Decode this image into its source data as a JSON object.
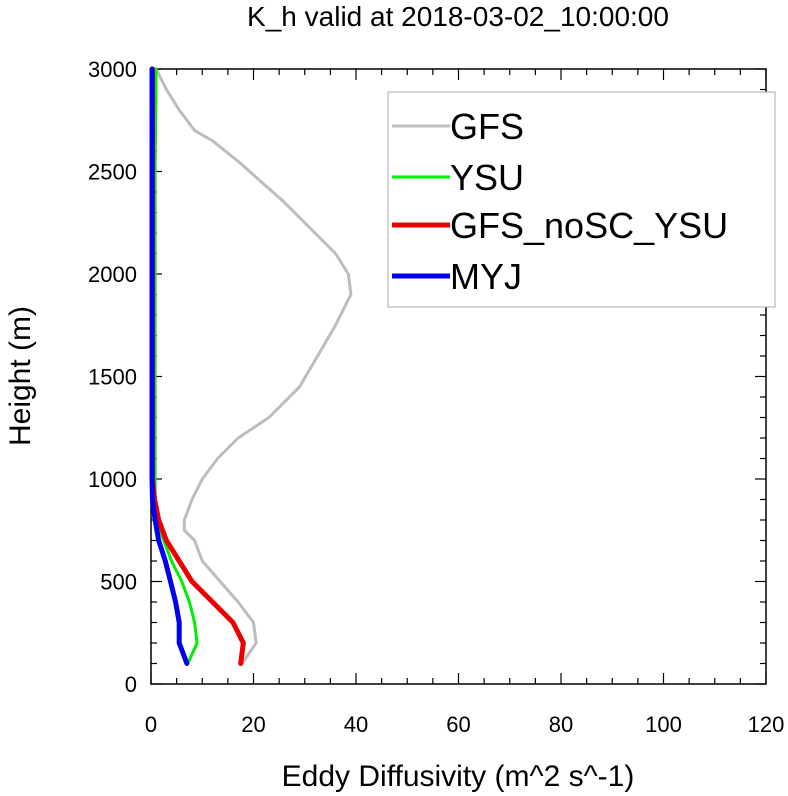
{
  "chart_data": {
    "type": "line",
    "title": "K_h valid at 2018-03-02_10:00:00",
    "xlabel": "Eddy Diffusivity (m^2 s^-1)",
    "ylabel": "Height (m)",
    "xlim": [
      0,
      120
    ],
    "ylim": [
      0,
      3000
    ],
    "xticks": [
      0,
      20,
      40,
      60,
      80,
      100,
      120
    ],
    "yticks": [
      0,
      500,
      1000,
      1500,
      2000,
      2500,
      3000
    ],
    "grid": false,
    "legend_position": "top-right",
    "series": [
      {
        "name": "GFS",
        "color": "#bdbdbd",
        "points": [
          [
            17.8,
            100
          ],
          [
            20.5,
            200
          ],
          [
            20,
            300
          ],
          [
            17,
            400
          ],
          [
            13.5,
            500
          ],
          [
            10,
            600
          ],
          [
            8.5,
            700
          ],
          [
            6.5,
            750
          ],
          [
            6.5,
            800
          ],
          [
            8,
            900
          ],
          [
            10,
            1000
          ],
          [
            13,
            1100
          ],
          [
            17,
            1200
          ],
          [
            23,
            1300
          ],
          [
            29,
            1450
          ],
          [
            32.5,
            1600
          ],
          [
            36,
            1750
          ],
          [
            39,
            1900
          ],
          [
            38.5,
            2000
          ],
          [
            36,
            2100
          ],
          [
            32,
            2200
          ],
          [
            26,
            2350
          ],
          [
            17,
            2550
          ],
          [
            12,
            2650
          ],
          [
            8.5,
            2700
          ],
          [
            5.5,
            2800
          ],
          [
            3,
            2900
          ],
          [
            1,
            3000
          ]
        ]
      },
      {
        "name": "YSU",
        "color": "#00ee00",
        "points": [
          [
            7.2,
            100
          ],
          [
            9,
            200
          ],
          [
            8.5,
            300
          ],
          [
            7.5,
            400
          ],
          [
            6,
            500
          ],
          [
            4,
            600
          ],
          [
            2.5,
            700
          ],
          [
            1.2,
            800
          ],
          [
            0.8,
            900
          ],
          [
            0.8,
            1000
          ],
          [
            0.8,
            1500
          ],
          [
            0.8,
            2000
          ],
          [
            0.8,
            2500
          ],
          [
            1,
            3000
          ]
        ]
      },
      {
        "name": "GFS_noSC_YSU",
        "color": "#ee0000",
        "points": [
          [
            17.5,
            100
          ],
          [
            18,
            200
          ],
          [
            16,
            300
          ],
          [
            12,
            400
          ],
          [
            8,
            500
          ],
          [
            5.5,
            600
          ],
          [
            3,
            700
          ],
          [
            1.5,
            800
          ],
          [
            0.7,
            900
          ],
          [
            0.3,
            1000
          ],
          [
            0.3,
            1500
          ],
          [
            0.3,
            2000
          ],
          [
            0.3,
            2500
          ],
          [
            0.3,
            3000
          ]
        ]
      },
      {
        "name": "MYJ",
        "color": "#0000ee",
        "points": [
          [
            7,
            100
          ],
          [
            5.5,
            200
          ],
          [
            5.5,
            300
          ],
          [
            4.8,
            400
          ],
          [
            3.8,
            500
          ],
          [
            2.8,
            600
          ],
          [
            1.5,
            700
          ],
          [
            0.8,
            800
          ],
          [
            0.3,
            900
          ],
          [
            0.2,
            1000
          ],
          [
            0.2,
            1500
          ],
          [
            0.2,
            2000
          ],
          [
            0.2,
            2500
          ],
          [
            0.2,
            3000
          ]
        ]
      }
    ]
  }
}
